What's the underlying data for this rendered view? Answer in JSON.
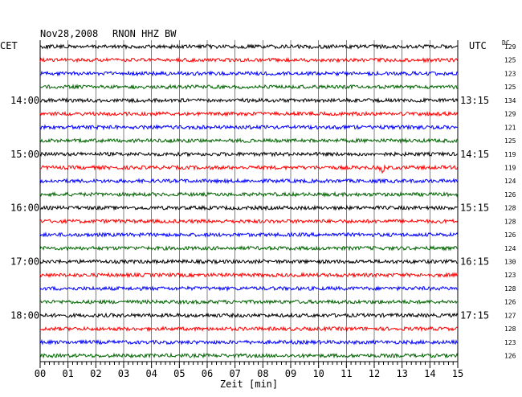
{
  "header": {
    "date": "Nov28,2008",
    "station": "RNON HHZ BW",
    "left_timezone": "CET",
    "right_timezone": "UTC",
    "dc_label": "DC"
  },
  "colors": {
    "trace_cycle": [
      "#000000",
      "#ff0000",
      "#0000ff",
      "#006400"
    ],
    "grid": "#000000",
    "background": "#ffffff"
  },
  "chart_data": {
    "type": "line",
    "title": "Nov28,2008 RNON HHZ BW",
    "xlabel": "Zeit [min]",
    "xlim": [
      0,
      15
    ],
    "x_ticks": [
      "00",
      "01",
      "02",
      "03",
      "04",
      "05",
      "06",
      "07",
      "08",
      "09",
      "10",
      "11",
      "12",
      "13",
      "14",
      "15"
    ],
    "grid": true,
    "trace_count": 24,
    "trace_minutes": 15,
    "left_hour_labels": [
      {
        "trace": 4,
        "label": "14:00"
      },
      {
        "trace": 8,
        "label": "15:00"
      },
      {
        "trace": 12,
        "label": "16:00"
      },
      {
        "trace": 16,
        "label": "17:00"
      },
      {
        "trace": 20,
        "label": "18:00"
      }
    ],
    "right_hour_labels": [
      {
        "trace": 4,
        "label": "13:15"
      },
      {
        "trace": 8,
        "label": "14:15"
      },
      {
        "trace": 12,
        "label": "15:15"
      },
      {
        "trace": 16,
        "label": "16:15"
      },
      {
        "trace": 20,
        "label": "17:15"
      }
    ],
    "dc_offsets": [
      "129",
      "125",
      "123",
      "125",
      "134",
      "129",
      "121",
      "125",
      "119",
      "119",
      "124",
      "126",
      "128",
      "128",
      "126",
      "124",
      "130",
      "123",
      "128",
      "126",
      "127",
      "128",
      "123",
      "126"
    ],
    "events": [
      {
        "trace": 9,
        "minute": 12.3,
        "amplitude": "large"
      }
    ]
  }
}
